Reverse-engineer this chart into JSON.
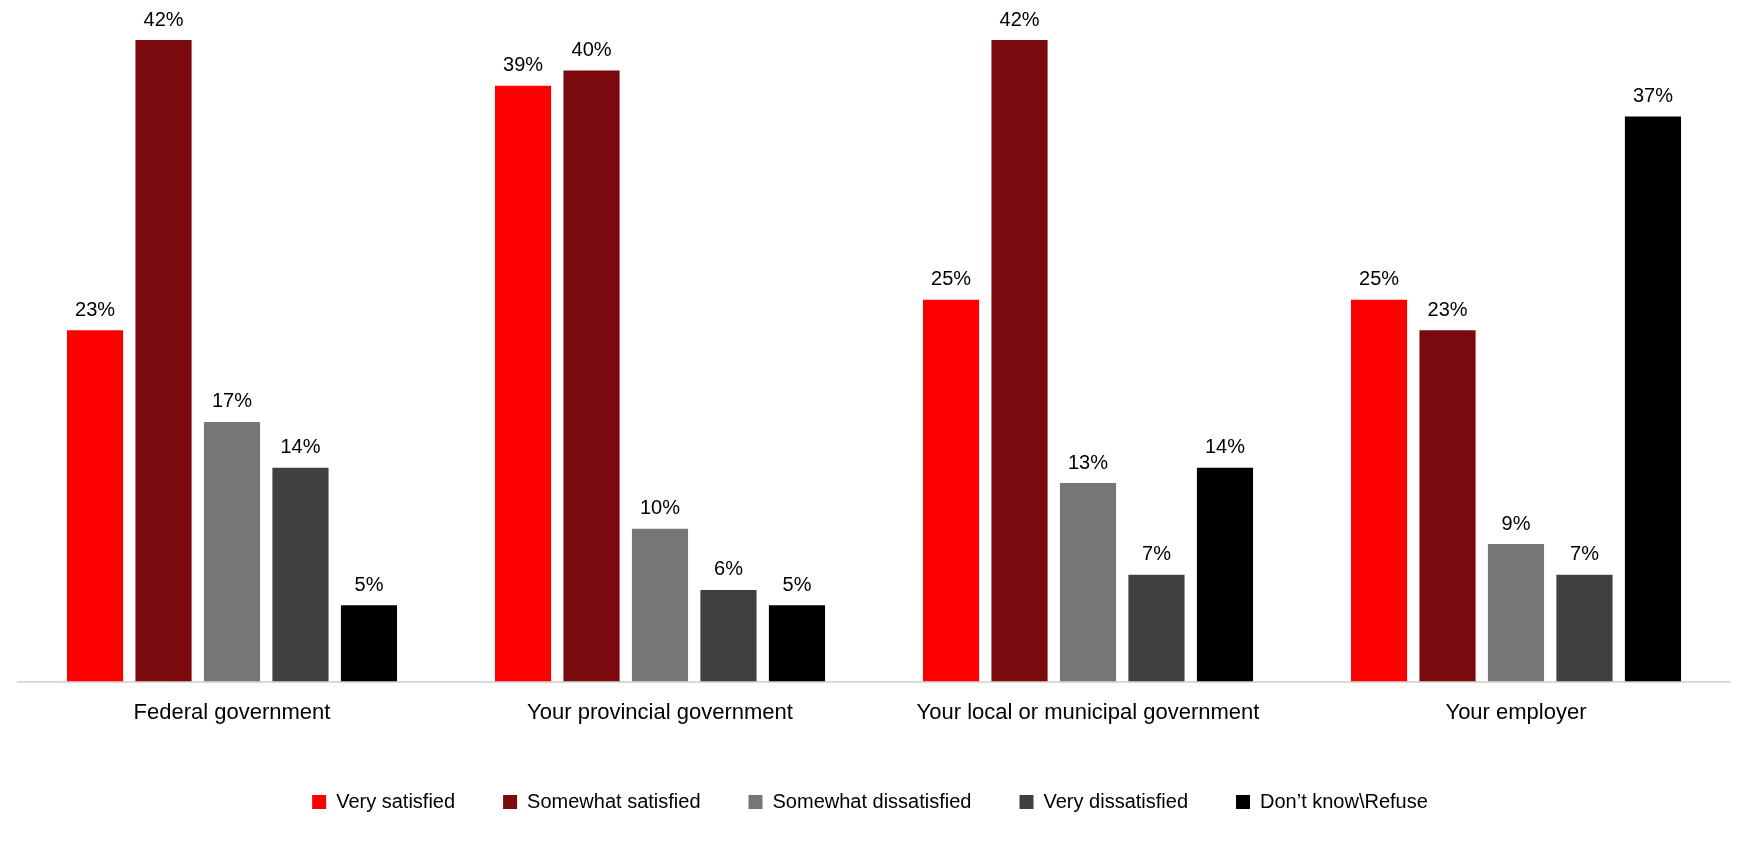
{
  "chart_data": {
    "type": "bar",
    "categories": [
      "Federal government",
      "Your provincial government",
      "Your local or municipal government",
      "Your employer"
    ],
    "series": [
      {
        "name": "Very satisfied",
        "color": "#ff0000",
        "values": [
          23,
          39,
          25,
          25
        ],
        "value_labels": [
          "23%",
          "39%",
          "25%",
          "25%"
        ]
      },
      {
        "name": "Somewhat satisfied",
        "color": "#7b0a0e",
        "values": [
          42,
          40,
          42,
          23
        ],
        "value_labels": [
          "42%",
          "40%",
          "42%",
          "23%"
        ]
      },
      {
        "name": "Somewhat dissatisfied",
        "color": "#767676",
        "values": [
          17,
          10,
          13,
          9
        ],
        "value_labels": [
          "17%",
          "10%",
          "13%",
          "9%"
        ]
      },
      {
        "name": "Very dissatisfied",
        "color": "#404040",
        "values": [
          14,
          6,
          7,
          7
        ],
        "value_labels": [
          "14%",
          "6%",
          "7%",
          "7%"
        ]
      },
      {
        "name": "Don’t know\\Refuse",
        "color": "#000000",
        "values": [
          5,
          5,
          14,
          37
        ],
        "value_labels": [
          "5%",
          "5%",
          "14%",
          "37%"
        ]
      }
    ],
    "ylim": [
      0,
      42
    ],
    "tick_labels": "x",
    "grid": false,
    "legend": "bottom"
  }
}
